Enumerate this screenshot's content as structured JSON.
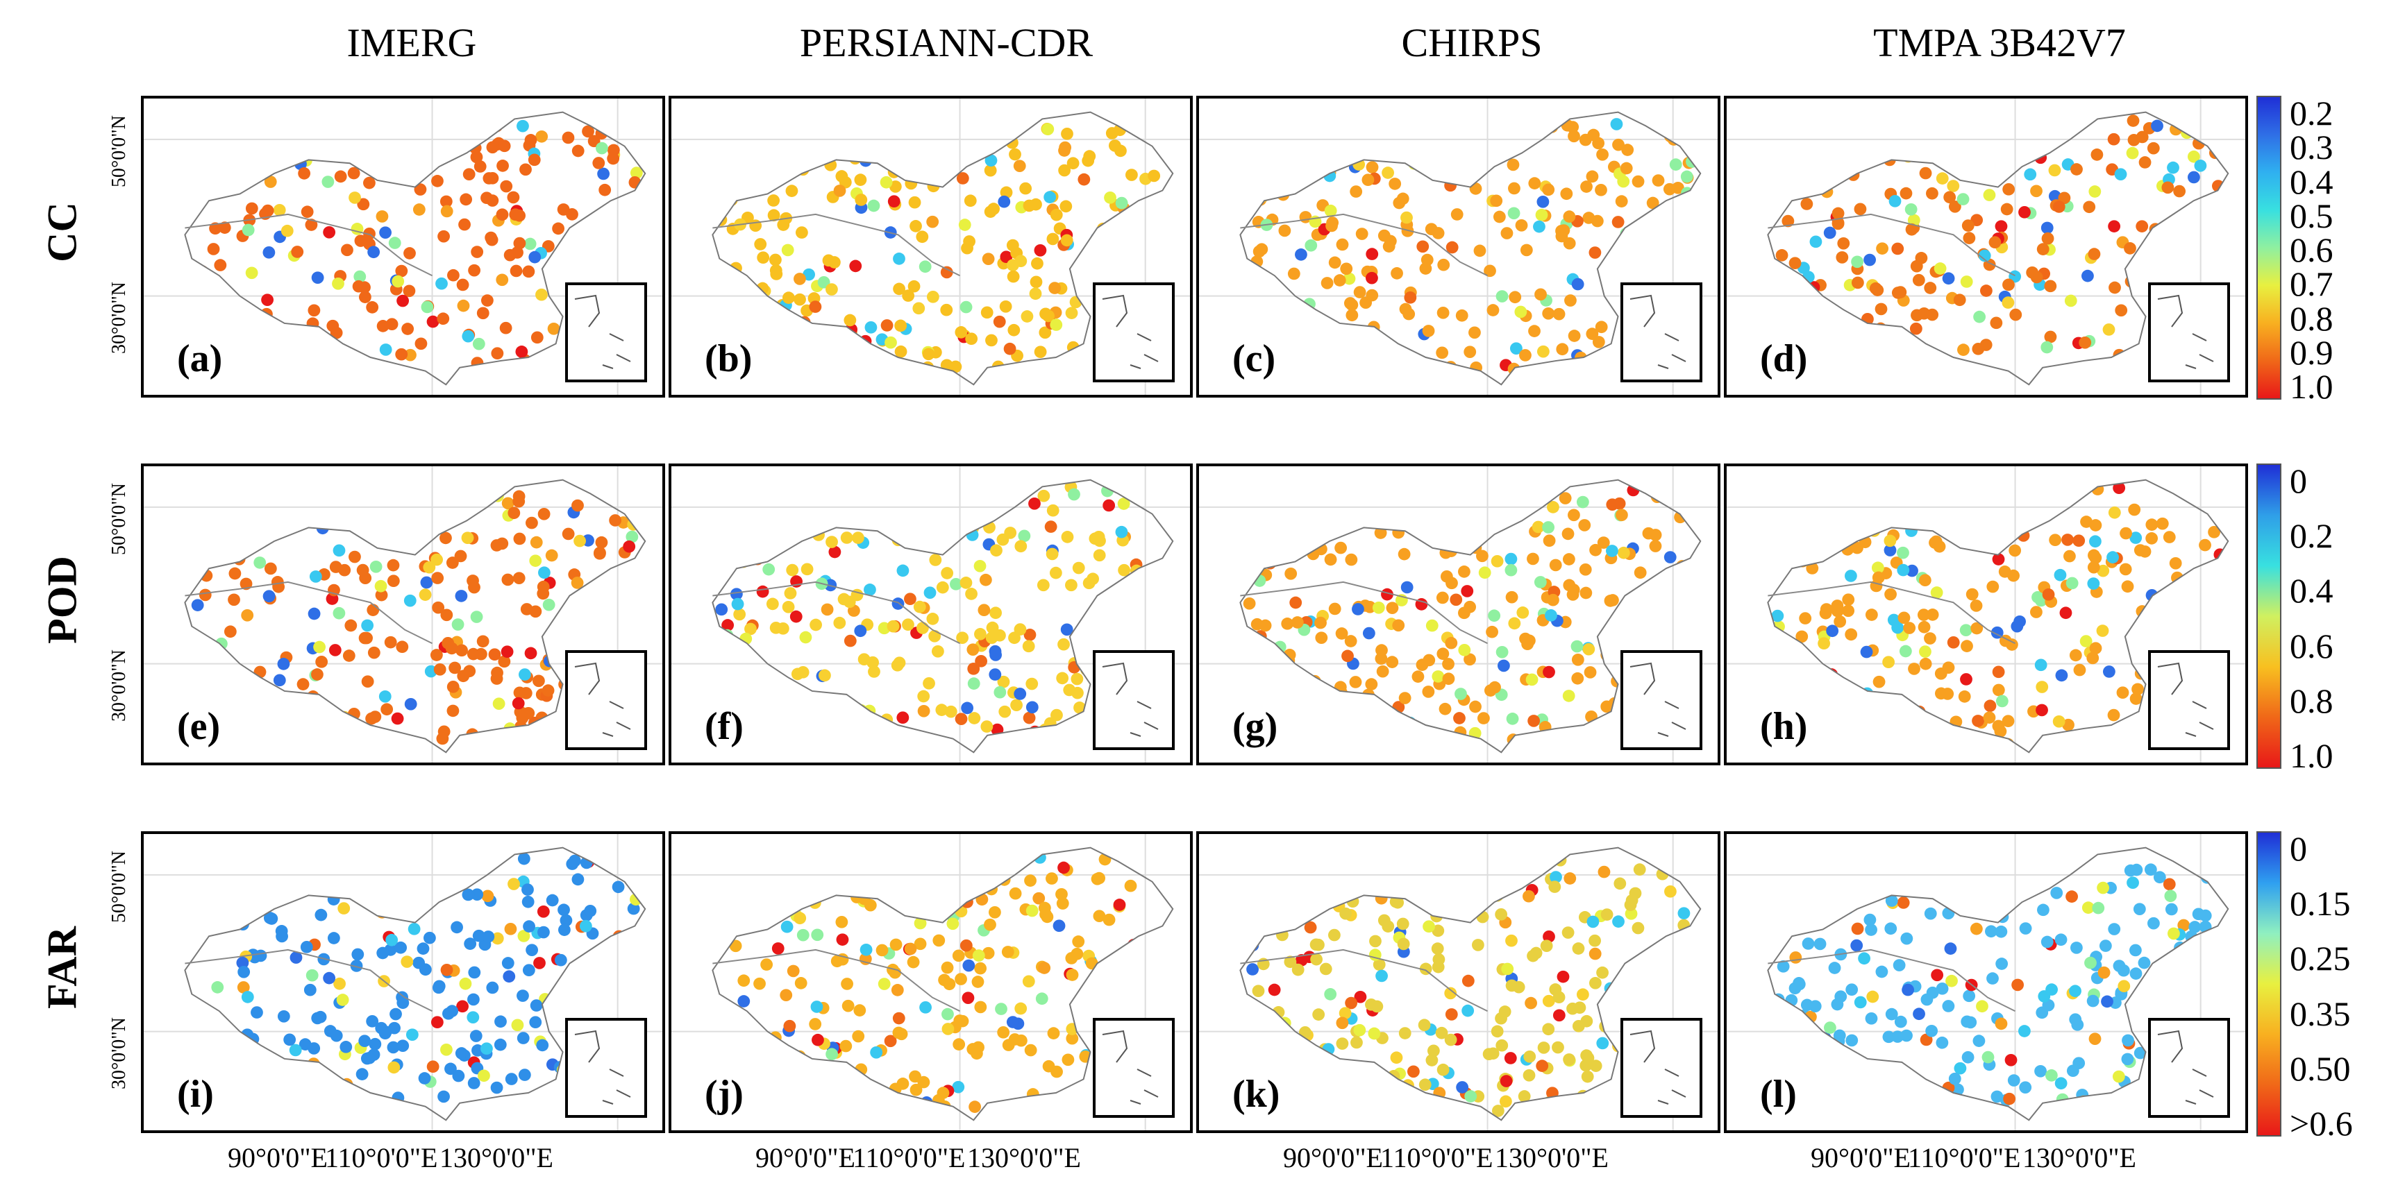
{
  "columns": [
    "IMERG",
    "PERSIANN-CDR",
    "CHIRPS",
    "TMPA 3B42V7"
  ],
  "rows": [
    {
      "metric": "CC",
      "panels": [
        "(a)",
        "(b)",
        "(c)",
        "(d)"
      ]
    },
    {
      "metric": "POD",
      "panels": [
        "(e)",
        "(f)",
        "(g)",
        "(h)"
      ]
    },
    {
      "metric": "FAR",
      "panels": [
        "(i)",
        "(j)",
        "(k)",
        "(l)"
      ]
    }
  ],
  "lat_labels": [
    "50°0'0\"N",
    "30°0'0\"N"
  ],
  "lon_labels": [
    "90°0'0\"E",
    "110°0'0\"E",
    "130°0'0\"E"
  ],
  "legends": {
    "cc": {
      "ticks": [
        "0.2",
        "0.3",
        "0.4",
        "0.5",
        "0.6",
        "0.7",
        "0.8",
        "0.9",
        "1.0"
      ],
      "colors": [
        "#1f2fd6",
        "#2f6fe6",
        "#2fb0f0",
        "#38e0e0",
        "#8ff0a0",
        "#e8f040",
        "#f8b020",
        "#f06818",
        "#e81818"
      ]
    },
    "pod": {
      "ticks": [
        "0",
        "0.2",
        "0.4",
        "0.6",
        "0.8",
        "1.0"
      ],
      "colors": [
        "#1f2fd6",
        "#2f9fe8",
        "#38e0e0",
        "#d0f060",
        "#f8c020",
        "#f06818",
        "#e81818"
      ]
    },
    "far": {
      "ticks": [
        "0",
        "0.15",
        "0.25",
        "0.35",
        "0.50",
        ">0.6"
      ],
      "colors": [
        "#1f2fd6",
        "#2fa0f0",
        "#8ff0c0",
        "#e8f040",
        "#f8b020",
        "#f06818",
        "#e81818"
      ]
    }
  },
  "panel_dominant_colors": {
    "a": "#f06818",
    "b": "#f8c020",
    "c": "#f8a020",
    "d": "#f07818",
    "e": "#f07018",
    "f": "#f8d030",
    "g": "#f8a020",
    "h": "#f8a020",
    "i": "#2f8fe8",
    "j": "#f8b020",
    "k": "#e8d040",
    "l": "#48b8f0"
  }
}
